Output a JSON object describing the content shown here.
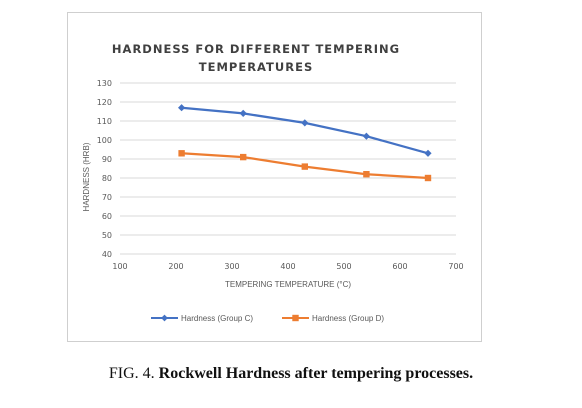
{
  "chart_data": {
    "type": "line",
    "title_lines": [
      "HARDNESS FOR DIFFERENT TEMPERING",
      "TEMPERATURES"
    ],
    "xlabel": "TEMPERING TEMPERATURE (°C)",
    "ylabel": "HARDNESS (HRB)",
    "xlim": [
      100,
      700
    ],
    "ylim": [
      40,
      130
    ],
    "xticks": [
      100,
      200,
      300,
      400,
      500,
      600,
      700
    ],
    "yticks": [
      40,
      50,
      60,
      70,
      80,
      90,
      100,
      110,
      120,
      130
    ],
    "grid": "horizontal",
    "legend": "bottom",
    "series": [
      {
        "name": "Hardness (Group C)",
        "color": "#4472C4",
        "marker": "diamond",
        "x": [
          210,
          320,
          430,
          540,
          650
        ],
        "y": [
          117,
          114,
          109,
          102,
          93
        ]
      },
      {
        "name": "Hardness (Group D)",
        "color": "#ED7D31",
        "marker": "square",
        "x": [
          210,
          320,
          430,
          540,
          650
        ],
        "y": [
          93,
          91,
          86,
          82,
          80
        ]
      }
    ]
  },
  "caption": {
    "prefix": "FIG. 4. ",
    "text": "Rockwell Hardness after tempering processes."
  }
}
